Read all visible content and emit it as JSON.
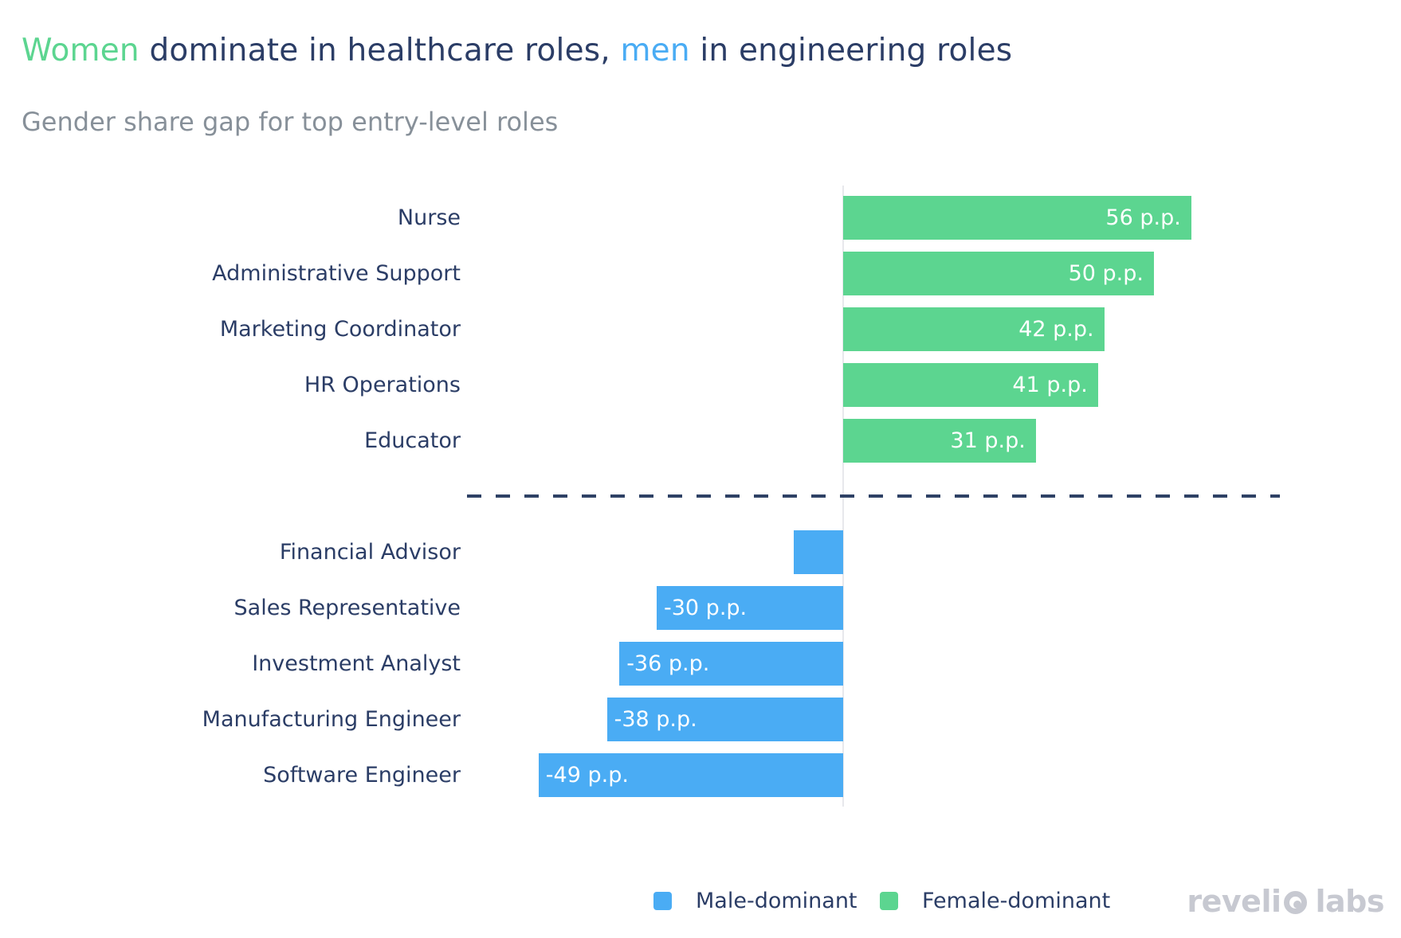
{
  "title": {
    "part1": "Women",
    "part2": " dominate in healthcare roles, ",
    "part3": "men",
    "part4": " in engineering roles"
  },
  "subtitle": "Gender share gap for top entry-level roles",
  "colors": {
    "navy": "#2b3d66",
    "green": "#5cd590",
    "blue": "#4aacf4",
    "gray": "#879099",
    "logo_gray": "#c7c9d1",
    "dash_navy": "#2e4165",
    "axis_gray": "#e7e8ec"
  },
  "chart_data": {
    "type": "bar",
    "orientation": "horizontal",
    "title": "Women dominate in healthcare roles, men in engineering roles",
    "subtitle": "Gender share gap for top entry-level roles",
    "unit": "percentage points",
    "xlim": [
      -60,
      70
    ],
    "categories": [
      "Nurse",
      "Administrative Support",
      "Marketing Coordinator",
      "HR Operations",
      "Educator",
      "Financial Advisor",
      "Sales Representative",
      "Investment Analyst",
      "Manufacturing Engineer",
      "Software Engineer"
    ],
    "values": [
      56,
      50,
      42,
      41,
      31,
      -8,
      -30,
      -36,
      -38,
      -49
    ],
    "bar_labels": [
      "56 p.p.",
      "50 p.p.",
      "42 p.p.",
      "41 p.p.",
      "31 p.p.",
      "",
      "-30 p.p.",
      "-36 p.p.",
      "-38 p.p.",
      "-49 p.p."
    ],
    "groups": [
      "female",
      "female",
      "female",
      "female",
      "female",
      "male",
      "male",
      "male",
      "male",
      "male"
    ],
    "legend_position": "bottom",
    "grid": false
  },
  "legend": [
    {
      "label": "Male-dominant",
      "color_key": "blue"
    },
    {
      "label": "Female-dominant",
      "color_key": "green"
    }
  ],
  "logo": {
    "text_left": "reveli",
    "text_right": "labs"
  }
}
